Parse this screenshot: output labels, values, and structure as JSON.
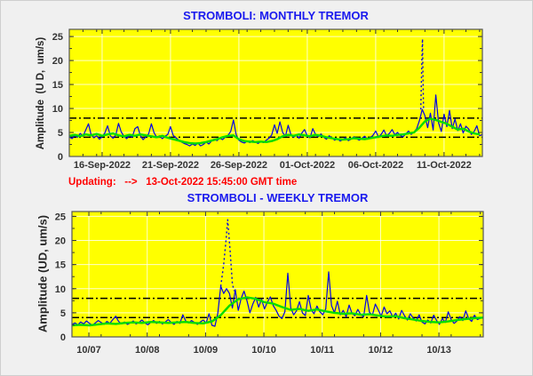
{
  "page": {
    "background": "#f0f0f0",
    "updating_line": "Updating:   -->   13-Oct-2022 15:45:00 GMT time"
  },
  "colors": {
    "plot_background": "#ffff00",
    "raw_series": "#0000e6",
    "smoothed_series": "#00dd00",
    "threshold_lines": "#000000",
    "gridlines": "#ffffff",
    "title_text": "#1a1aee",
    "updating_text": "#ff0000",
    "tick_text": "#333333"
  },
  "chart_data": [
    {
      "id": "monthly",
      "type": "line",
      "title": "STROMBOLI: MONTHLY TREMOR",
      "ylabel": "Amplitude  (U D,  um/s)",
      "xlim": [
        0,
        30.2
      ],
      "ylim": [
        0,
        26.5
      ],
      "grid": true,
      "legend": "none",
      "background": "#ffff00",
      "yticks": [
        0,
        5,
        10,
        15,
        20,
        25
      ],
      "yminor_step": 2.5,
      "xminor_step": 1,
      "xticks": [
        {
          "v": 2.4,
          "label": "16-Sep-2022"
        },
        {
          "v": 7.4,
          "label": "21-Sep-2022"
        },
        {
          "v": 12.4,
          "label": "26-Sep-2022"
        },
        {
          "v": 17.4,
          "label": "01-Oct-2022"
        },
        {
          "v": 22.4,
          "label": "06-Oct-2022"
        },
        {
          "v": 27.4,
          "label": "11-Oct-2022"
        }
      ],
      "hlines": {
        "values": [
          8,
          4
        ],
        "style": "dash-dot",
        "color": "#000000"
      },
      "series": [
        {
          "name": "tremor-raw",
          "color": "#0000e6",
          "width": 1.2,
          "x0": 0,
          "dx": 0.2,
          "y": [
            4.1,
            3.7,
            4.4,
            4.0,
            4.8,
            4.2,
            5.5,
            6.8,
            4.5,
            3.9,
            4.3,
            3.6,
            4.1,
            4.9,
            6.4,
            4.3,
            3.8,
            4.5,
            6.9,
            5.1,
            4.2,
            3.7,
            4.4,
            4.0,
            5.8,
            6.2,
            4.3,
            3.5,
            4.1,
            4.7,
            6.8,
            4.9,
            4.0,
            4.3,
            3.7,
            4.2,
            4.6,
            6.2,
            4.4,
            3.9,
            3.4,
            3.0,
            2.7,
            2.5,
            2.2,
            2.6,
            2.3,
            2.8,
            2.2,
            2.5,
            3.0,
            2.6,
            3.2,
            3.6,
            3.3,
            3.8,
            3.5,
            4.0,
            4.4,
            5.2,
            7.6,
            4.6,
            3.4,
            3.0,
            2.8,
            3.2,
            2.9,
            3.3,
            3.0,
            2.7,
            3.1,
            2.9,
            3.4,
            3.8,
            4.5,
            6.6,
            4.8,
            7.2,
            5.0,
            4.2,
            6.5,
            4.6,
            4.0,
            4.4,
            3.8,
            4.9,
            5.6,
            4.3,
            3.9,
            5.8,
            4.6,
            4.1,
            4.7,
            4.0,
            3.6,
            4.3,
            3.9,
            3.4,
            3.7,
            3.2,
            3.5,
            3.9,
            3.3,
            3.6,
            4.1,
            3.7,
            3.4,
            3.8,
            4.2,
            3.6,
            3.9,
            4.4,
            5.3,
            4.1,
            4.6,
            5.5,
            4.3,
            4.8,
            5.6,
            4.5,
            5.0,
            4.4,
            4.1,
            4.7,
            5.3,
            4.6,
            5.1,
            5.8,
            7.5,
            9.8,
            8.5,
            6.0,
            9.0,
            5.5,
            12.8,
            7.0,
            5.2,
            8.8,
            6.2,
            9.6,
            5.8,
            7.8,
            5.4,
            6.8,
            4.9,
            6.3,
            5.7,
            4.6,
            5.2,
            6.4,
            4.3,
            4.6
          ]
        },
        {
          "name": "tremor-spike-dotted",
          "color": "#0000e6",
          "width": 1.4,
          "dotted": true,
          "points": [
            [
              25.7,
              9.8
            ],
            [
              25.74,
              15
            ],
            [
              25.78,
              20
            ],
            [
              25.82,
              24.5
            ],
            [
              25.86,
              16
            ],
            [
              25.9,
              10
            ]
          ]
        },
        {
          "name": "tremor-smoothed",
          "color": "#00dd00",
          "width": 2.4,
          "x0": 0,
          "dx": 0.4,
          "y": [
            4.3,
            4.5,
            4.2,
            4.6,
            4.4,
            4.7,
            4.3,
            4.6,
            4.8,
            4.4,
            4.2,
            4.5,
            4.3,
            4.6,
            4.4,
            4.2,
            4.0,
            4.3,
            3.9,
            3.6,
            3.3,
            3.0,
            2.8,
            2.7,
            2.8,
            3.0,
            3.3,
            3.6,
            4.0,
            4.3,
            4.4,
            3.6,
            3.2,
            3.1,
            3.0,
            3.1,
            3.0,
            3.2,
            3.6,
            4.2,
            4.5,
            4.3,
            4.6,
            4.4,
            4.2,
            4.5,
            4.3,
            4.0,
            3.8,
            3.6,
            3.5,
            3.6,
            3.8,
            3.7,
            3.6,
            3.8,
            4.0,
            4.2,
            4.4,
            4.3,
            4.5,
            4.6,
            4.8,
            5.0,
            6.0,
            7.3,
            7.9,
            7.6,
            7.2,
            6.8,
            6.2,
            5.6,
            5.8,
            5.2,
            4.8,
            4.6
          ]
        }
      ]
    },
    {
      "id": "weekly",
      "type": "line",
      "title": "STROMBOLI - WEEKLY TREMOR",
      "ylabel": "Amplitude (UD, um/s)",
      "xlim": [
        0,
        7.05
      ],
      "ylim": [
        0,
        26
      ],
      "grid": true,
      "legend": "none",
      "background": "#ffff00",
      "yticks": [
        0,
        5,
        10,
        15,
        20,
        25
      ],
      "yminor_step": 2.5,
      "xminor_step": 0.5,
      "xticks": [
        {
          "v": 0.29,
          "label": "10/07"
        },
        {
          "v": 1.29,
          "label": "10/08"
        },
        {
          "v": 2.29,
          "label": "10/09"
        },
        {
          "v": 3.29,
          "label": "10/10"
        },
        {
          "v": 4.29,
          "label": "10/11"
        },
        {
          "v": 5.29,
          "label": "10/12"
        },
        {
          "v": 6.29,
          "label": "10/13"
        }
      ],
      "hlines": {
        "values": [
          8,
          4
        ],
        "style": "dash-dot",
        "color": "#000000"
      },
      "series": [
        {
          "name": "tremor-raw",
          "color": "#0000e6",
          "width": 1.2,
          "x0": 0,
          "dx": 0.05,
          "y": [
            2.6,
            2.9,
            2.5,
            3.1,
            2.7,
            3.3,
            2.8,
            2.4,
            2.9,
            3.4,
            3.0,
            2.6,
            3.2,
            2.8,
            3.6,
            4.3,
            3.2,
            2.7,
            3.1,
            2.6,
            2.9,
            3.3,
            2.7,
            3.0,
            3.5,
            2.9,
            2.5,
            3.0,
            3.4,
            2.8,
            3.2,
            2.7,
            3.1,
            3.6,
            3.0,
            2.6,
            3.2,
            2.8,
            4.6,
            3.3,
            2.9,
            3.4,
            3.0,
            2.6,
            3.1,
            3.5,
            2.9,
            4.8,
            2.4,
            2.2,
            4.9,
            10.5,
            9.0,
            10.0,
            9.0,
            6.0,
            9.8,
            5.5,
            8.0,
            9.5,
            7.5,
            5.0,
            6.8,
            8.2,
            6.2,
            7.8,
            5.8,
            7.2,
            8.3,
            6.5,
            5.5,
            4.3,
            3.8,
            5.2,
            13.2,
            6.0,
            4.6,
            5.4,
            7.3,
            5.0,
            4.4,
            8.6,
            5.6,
            4.8,
            6.4,
            5.2,
            4.6,
            5.8,
            13.5,
            6.5,
            5.0,
            7.4,
            4.6,
            5.5,
            4.2,
            6.6,
            4.9,
            4.4,
            5.7,
            4.6,
            4.2,
            8.6,
            5.1,
            4.5,
            6.8,
            5.6,
            4.3,
            6.2,
            4.8,
            5.4,
            4.1,
            4.9,
            3.7,
            5.5,
            4.4,
            3.5,
            4.8,
            3.9,
            3.3,
            4.6,
            3.1,
            2.7,
            3.5,
            2.9,
            4.5,
            3.4,
            2.6,
            3.8,
            3.0,
            5.2,
            3.6,
            2.8,
            3.3,
            4.2,
            3.4,
            5.4,
            3.8,
            3.2,
            4.5,
            3.6,
            3.9,
            4.1
          ]
        },
        {
          "name": "tremor-spike-dotted",
          "color": "#0000e6",
          "width": 1.4,
          "dotted": true,
          "points": [
            [
              2.55,
              10.5
            ],
            [
              2.6,
              15
            ],
            [
              2.64,
              20
            ],
            [
              2.67,
              24.3
            ],
            [
              2.71,
              18
            ],
            [
              2.75,
              11
            ],
            [
              2.78,
              9.5
            ]
          ]
        },
        {
          "name": "tremor-smoothed",
          "color": "#00dd00",
          "width": 2.4,
          "x0": 0,
          "dx": 0.15,
          "y": [
            2.4,
            2.5,
            2.4,
            2.6,
            2.8,
            2.7,
            2.9,
            3.0,
            2.9,
            3.1,
            3.0,
            2.9,
            3.0,
            3.1,
            2.9,
            2.8,
            3.2,
            4.5,
            6.5,
            7.8,
            8.2,
            7.9,
            7.2,
            6.9,
            6.2,
            5.6,
            5.8,
            5.4,
            5.7,
            5.3,
            5.0,
            4.8,
            4.9,
            4.6,
            4.7,
            4.4,
            4.2,
            4.3,
            3.9,
            3.6,
            3.3,
            3.1,
            3.0,
            3.2,
            3.5,
            3.7,
            3.9,
            4.0
          ]
        }
      ]
    }
  ]
}
